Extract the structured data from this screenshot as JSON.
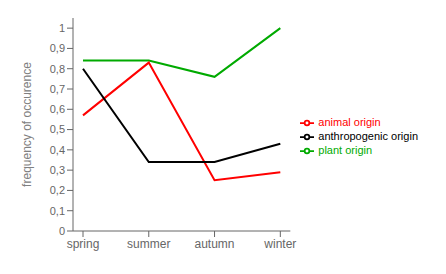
{
  "chart_data": {
    "type": "line",
    "categories": [
      "spring",
      "summer",
      "autumn",
      "winter"
    ],
    "series": [
      {
        "name": "plant origin",
        "color": "#00aa00",
        "values": [
          0.84,
          0.84,
          0.76,
          1.0
        ]
      },
      {
        "name": "animal origin",
        "color": "#ff0000",
        "values": [
          0.57,
          0.83,
          0.25,
          0.29
        ]
      },
      {
        "name": "anthropogenic origin",
        "color": "#000000",
        "values": [
          0.8,
          0.34,
          0.34,
          0.43
        ]
      }
    ],
    "ylabel": "frequency of occurence",
    "ylim": [
      0,
      1.05
    ],
    "yticks": [
      0,
      {
        "value": 0.1,
        "label": "0,1"
      },
      {
        "value": 0.2,
        "label": "0,2"
      },
      {
        "value": 0.3,
        "label": "0,3"
      },
      {
        "value": 0.4,
        "label": "0,4"
      },
      {
        "value": 0.5,
        "label": "0,5"
      },
      {
        "value": 0.6,
        "label": "0,6"
      },
      {
        "value": 0.7,
        "label": "0,7"
      },
      {
        "value": 0.8,
        "label": "0,8"
      },
      {
        "value": 0.9,
        "label": "0,9"
      },
      1
    ],
    "grid": false,
    "legend": "right"
  }
}
